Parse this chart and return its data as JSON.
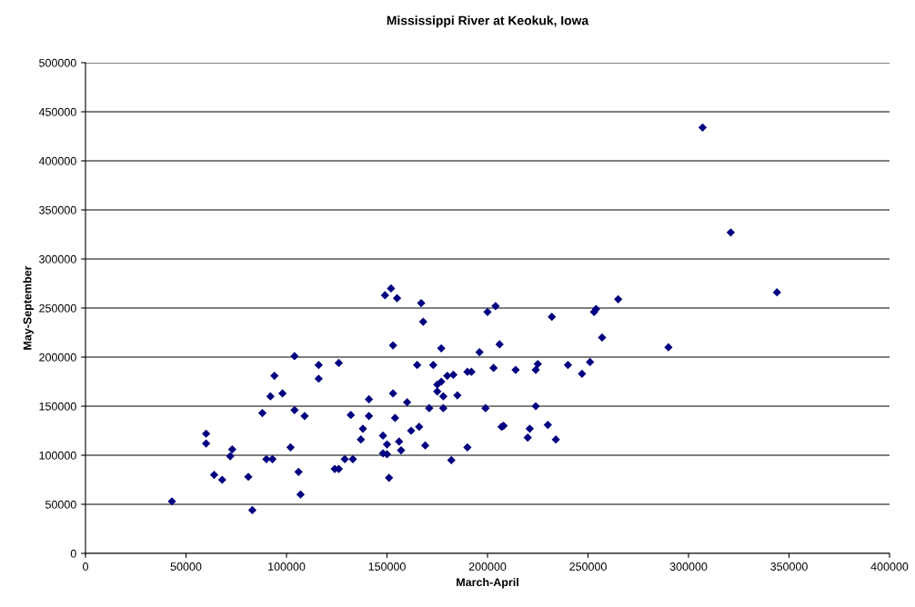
{
  "chart_data": {
    "type": "scatter",
    "title": "Mississippi River at Keokuk, Iowa",
    "xlabel": "March-April",
    "ylabel": "May-September",
    "xlim": [
      0,
      400000
    ],
    "xticks": [
      0,
      50000,
      100000,
      150000,
      200000,
      250000,
      300000,
      350000,
      400000
    ],
    "ylim": [
      0,
      500000
    ],
    "yticks": [
      0,
      50000,
      100000,
      150000,
      200000,
      250000,
      300000,
      350000,
      400000,
      450000,
      500000
    ],
    "grid": "y",
    "marker": "diamond",
    "legend": false,
    "series": [
      {
        "color": "#000080",
        "x": [
          43000,
          60000,
          60000,
          64000,
          68000,
          72000,
          73000,
          81000,
          83000,
          88000,
          90000,
          92000,
          93000,
          94000,
          98000,
          102000,
          104000,
          104000,
          106000,
          107000,
          109000,
          116000,
          116000,
          124000,
          126000,
          126000,
          129000,
          132000,
          133000,
          137000,
          138000,
          141000,
          141000,
          148000,
          148000,
          149000,
          150000,
          150000,
          151000,
          152000,
          153000,
          153000,
          154000,
          155000,
          156000,
          157000,
          160000,
          162000,
          165000,
          166000,
          167000,
          168000,
          169000,
          171000,
          173000,
          175000,
          175000,
          177000,
          177000,
          178000,
          178000,
          180000,
          182000,
          183000,
          185000,
          190000,
          190000,
          192000,
          196000,
          199000,
          200000,
          203000,
          204000,
          206000,
          207000,
          208000,
          214000,
          220000,
          221000,
          224000,
          224000,
          225000,
          230000,
          232000,
          234000,
          240000,
          247000,
          251000,
          253000,
          254000,
          257000,
          265000,
          290000,
          307000,
          321000,
          344000
        ],
        "values": [
          53000,
          122000,
          112000,
          80000,
          75000,
          99000,
          106000,
          78000,
          44000,
          143000,
          96000,
          160000,
          96000,
          181000,
          163000,
          108000,
          201000,
          146000,
          83000,
          60000,
          140000,
          192000,
          178000,
          86000,
          194000,
          86000,
          96000,
          141000,
          96000,
          116000,
          127000,
          157000,
          140000,
          102000,
          120000,
          263000,
          111000,
          101000,
          77000,
          270000,
          212000,
          163000,
          138000,
          260000,
          114000,
          105000,
          154000,
          125000,
          192000,
          129000,
          255000,
          236000,
          110000,
          148000,
          192000,
          172000,
          165000,
          209000,
          175000,
          148000,
          160000,
          181000,
          95000,
          182000,
          161000,
          185000,
          108000,
          185000,
          205000,
          148000,
          246000,
          189000,
          252000,
          213000,
          129000,
          130000,
          187000,
          118000,
          127000,
          187000,
          150000,
          193000,
          131000,
          241000,
          116000,
          192000,
          183000,
          195000,
          246000,
          249000,
          220000,
          259000,
          210000,
          434000,
          327000,
          266000
        ]
      }
    ]
  }
}
